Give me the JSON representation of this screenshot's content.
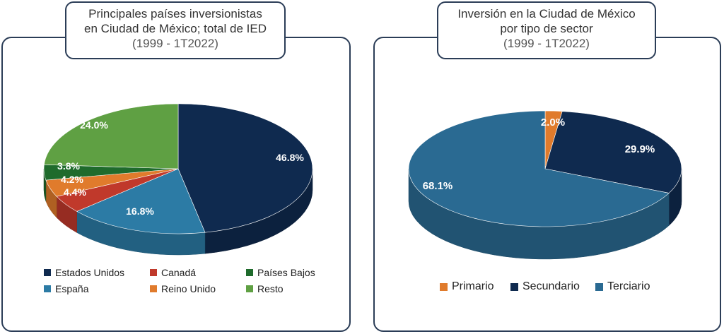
{
  "chart_data": [
    {
      "type": "pie",
      "title": "Principales países inversionistas en Ciudad de México; total de IED",
      "subtitle": "(1999 - 1T2022)",
      "slices": [
        {
          "name": "Estados Unidos",
          "value": 46.8,
          "label": "46.8%",
          "color": "#0f2a4f"
        },
        {
          "name": "España",
          "value": 16.8,
          "label": "16.8%",
          "color": "#2c7ba5"
        },
        {
          "name": "Canadá",
          "value": 4.4,
          "label": "4.4%",
          "color": "#c0392b"
        },
        {
          "name": "Reino Unido",
          "value": 4.2,
          "label": "4.2%",
          "color": "#e07b2c"
        },
        {
          "name": "Países Bajos",
          "value": 3.8,
          "label": "3.8%",
          "color": "#1f6b2c"
        },
        {
          "name": "Resto",
          "value": 24.0,
          "label": "24.0%",
          "color": "#5fa043"
        }
      ],
      "legend_order": [
        "Estados Unidos",
        "Canadá",
        "Países Bajos",
        "España",
        "Reino Unido",
        "Resto"
      ]
    },
    {
      "type": "pie",
      "title": "Inversión en la Ciudad de México por tipo de sector",
      "subtitle": "(1999 - 1T2022)",
      "slices": [
        {
          "name": "Primario",
          "value": 2.0,
          "label": "2.0%",
          "color": "#e07b2c"
        },
        {
          "name": "Secundario",
          "value": 29.9,
          "label": "29.9%",
          "color": "#0f2a4f"
        },
        {
          "name": "Terciario",
          "value": 68.1,
          "label": "68.1%",
          "color": "#2a6a92"
        }
      ],
      "legend_order": [
        "Primario",
        "Secundario",
        "Terciario"
      ]
    }
  ]
}
